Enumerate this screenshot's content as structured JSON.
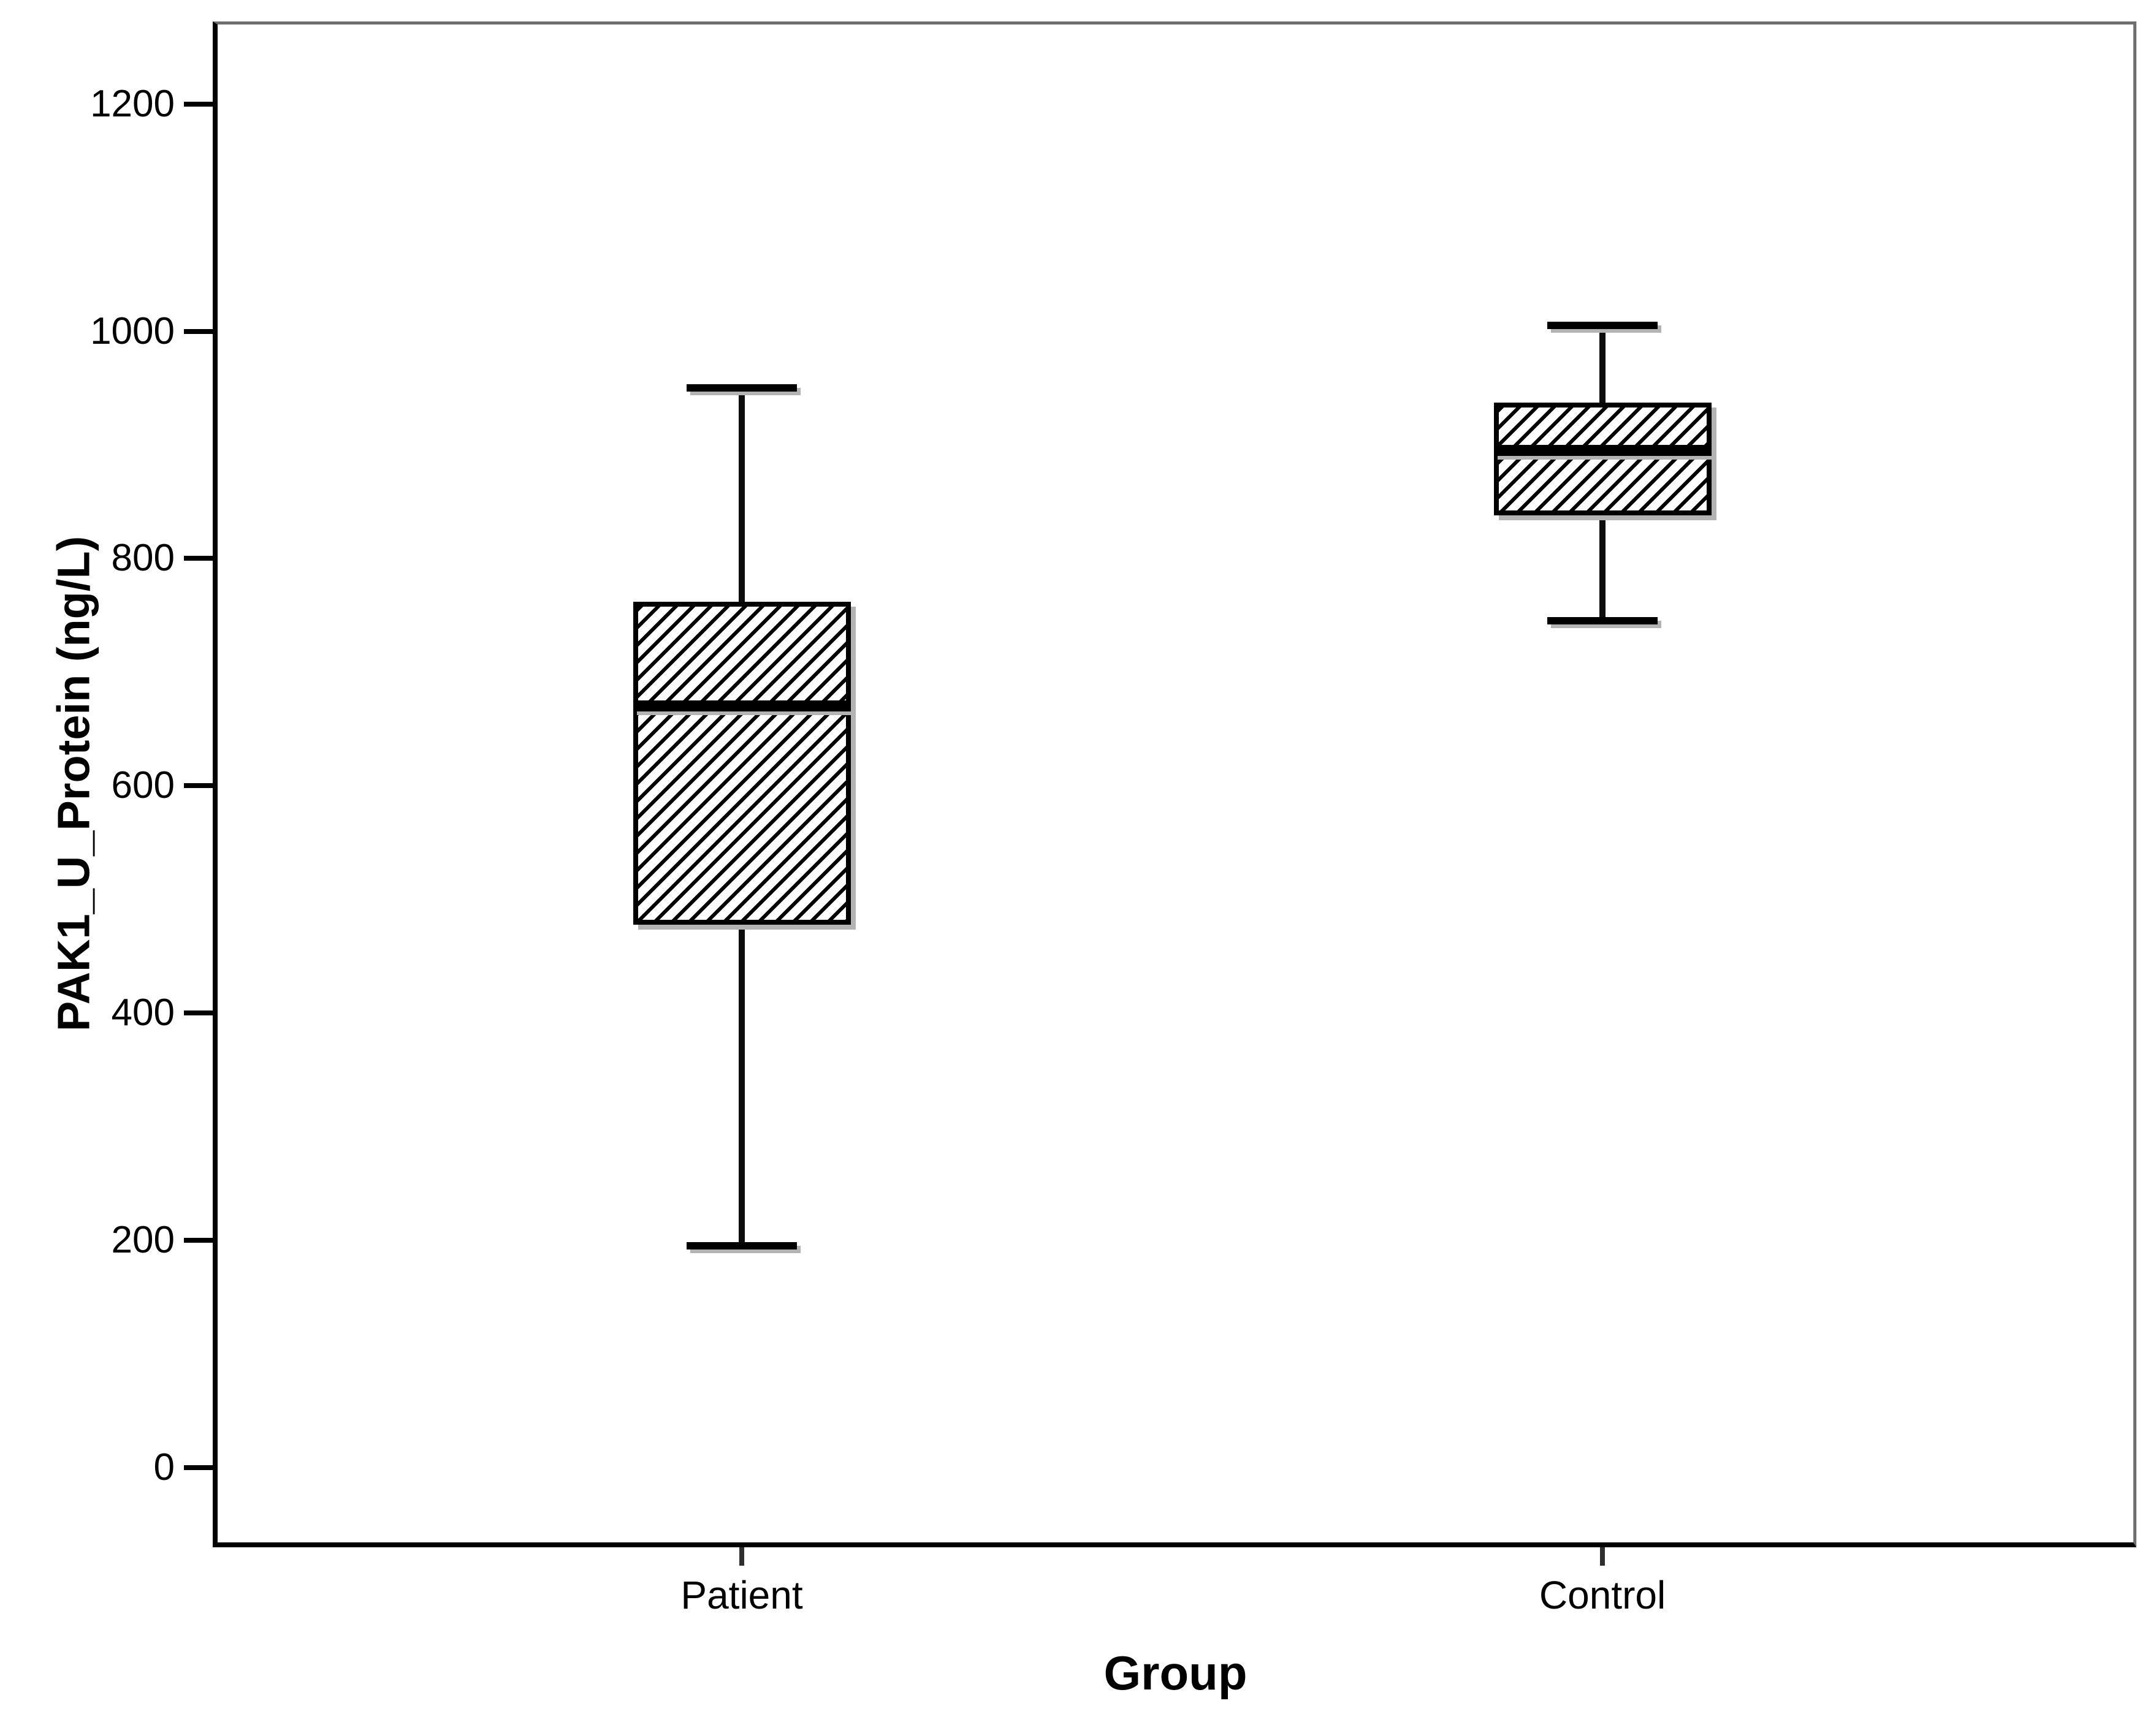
{
  "figure": {
    "background": "#ffffff",
    "frame_colors": {
      "top": "#6e6e6e",
      "right": "#6e6e6e",
      "bottom": "#000000",
      "left": "#000000"
    }
  },
  "chart_data": {
    "type": "boxplot",
    "title": "",
    "xlabel": "Group",
    "ylabel": "PAK1_U_Protein (ng/L)",
    "categories": [
      "Patient",
      "Control"
    ],
    "y_axis": {
      "ticks": [
        0,
        200,
        400,
        600,
        800,
        1000,
        1200
      ],
      "tick_step": 200,
      "range_min": -66,
      "range_max": 1270,
      "grid": false
    },
    "series": [
      {
        "name": "Patient",
        "whisker_low": 195,
        "q1": 480,
        "median": 670,
        "q3": 760,
        "whisker_high": 950,
        "x_frac": 0.2736
      },
      {
        "name": "Control",
        "whisker_low": 745,
        "q1": 840,
        "median": 895,
        "q3": 935,
        "whisker_high": 1005,
        "x_frac": 0.7229
      }
    ],
    "box_width_frac": 0.1136,
    "cap_width_frac": 0.0576,
    "fill_pattern": "forward-slash-diagonal-hatch",
    "legend": "none",
    "colors": {
      "stroke": "#000000",
      "fill": "#ffffff",
      "shadow": "#b3b3b3"
    }
  }
}
